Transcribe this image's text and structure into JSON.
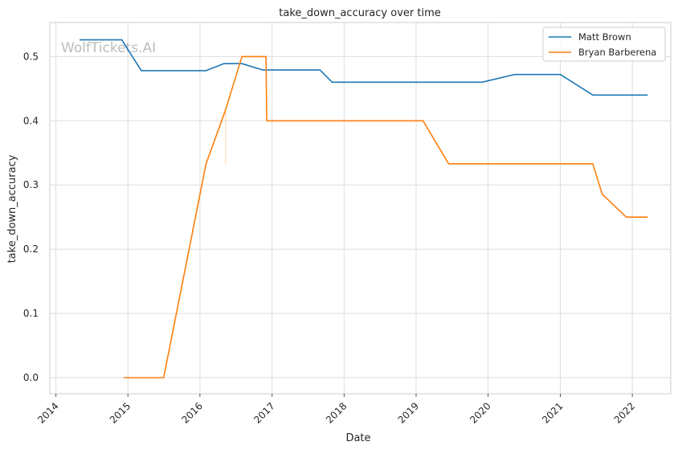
{
  "watermark": "WolfTickets.AI",
  "chart_data": {
    "type": "line",
    "title": "take_down_accuracy over time",
    "xlabel": "Date",
    "ylabel": "take_down_accuracy",
    "x_type": "date",
    "xlim": [
      "2013-12-01",
      "2022-07-15"
    ],
    "ylim": [
      -0.025,
      0.553
    ],
    "x_ticks": [
      "2014",
      "2015",
      "2016",
      "2017",
      "2018",
      "2019",
      "2020",
      "2021",
      "2022"
    ],
    "y_ticks": [
      "0.0",
      "0.1",
      "0.2",
      "0.3",
      "0.4",
      "0.5"
    ],
    "y_tick_values": [
      0.0,
      0.1,
      0.2,
      0.3,
      0.4,
      0.5
    ],
    "grid": true,
    "legend_position": "top-right",
    "series": [
      {
        "name": "Matt Brown",
        "color": "#1f77b4",
        "points": [
          [
            "2014-05-01",
            0.526
          ],
          [
            "2014-12-01",
            0.526
          ],
          [
            "2015-03-10",
            0.478
          ],
          [
            "2016-02-01",
            0.478
          ],
          [
            "2016-05-01",
            0.489
          ],
          [
            "2016-08-01",
            0.489
          ],
          [
            "2016-11-15",
            0.479
          ],
          [
            "2017-09-01",
            0.479
          ],
          [
            "2017-11-01",
            0.46
          ],
          [
            "2019-12-01",
            0.46
          ],
          [
            "2020-05-15",
            0.472
          ],
          [
            "2021-01-01",
            0.472
          ],
          [
            "2021-06-15",
            0.44
          ],
          [
            "2022-03-20",
            0.44
          ]
        ]
      },
      {
        "name": "Bryan Barberena",
        "color": "#ff7f0e",
        "points": [
          [
            "2014-12-10",
            0.0
          ],
          [
            "2015-07-01",
            0.0
          ],
          [
            "2016-02-01",
            0.333
          ],
          [
            "2016-05-10",
            0.417
          ],
          [
            "2016-08-01",
            0.5
          ],
          [
            "2016-12-01",
            0.5
          ],
          [
            "2016-12-05",
            0.4
          ],
          [
            "2019-02-05",
            0.4
          ],
          [
            "2019-06-15",
            0.333
          ],
          [
            "2021-06-15",
            0.333
          ],
          [
            "2021-08-01",
            0.286
          ],
          [
            "2021-12-01",
            0.25
          ],
          [
            "2022-03-20",
            0.25
          ]
        ],
        "minor_marks": [
          [
            "2016-05-10",
            0.333,
            0.417
          ]
        ]
      }
    ]
  }
}
